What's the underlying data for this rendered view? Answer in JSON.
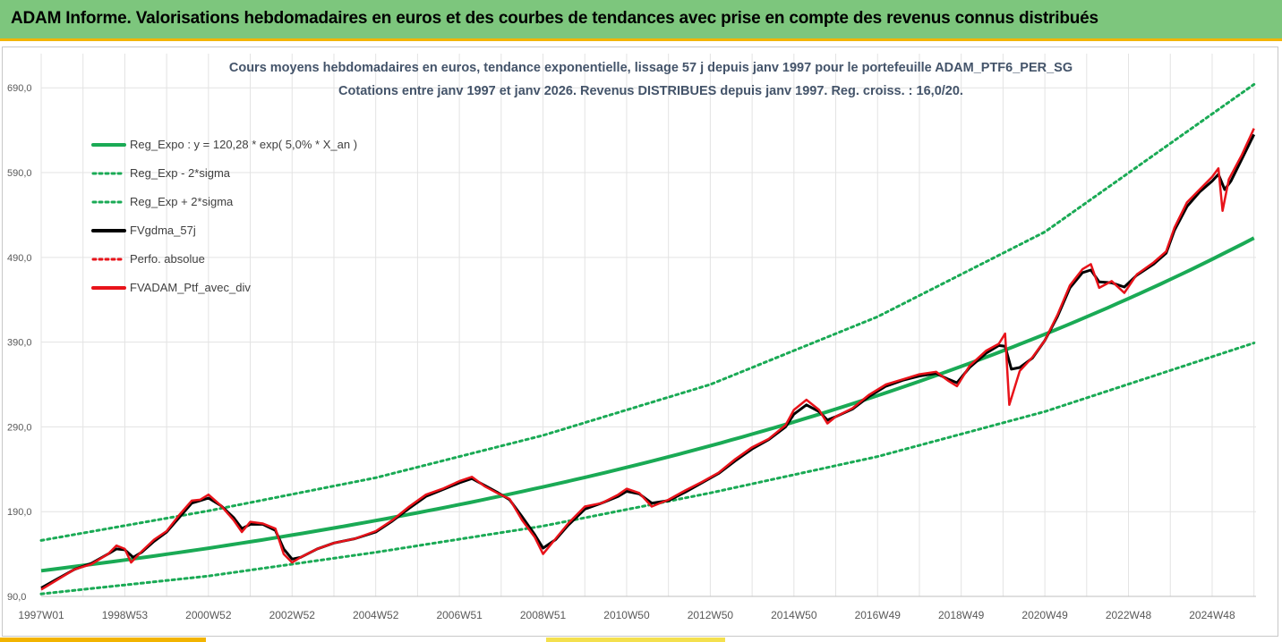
{
  "header": {
    "title": "ADAM Informe. Valorisations hebdomadaires en euros et des courbes de tendances avec prise en compte des revenus connus distribués"
  },
  "colors": {
    "header_bg": "#7dc67d",
    "accent_bar": "#f2b400",
    "trend": "#1aaa55",
    "moving_avg": "#000000",
    "portfolio": "#e8131a"
  },
  "chart_data": {
    "type": "line",
    "title": "Cours moyens hebdomadaires  en euros, tendance exponentielle, lissage 57 j depuis janv 1997 pour le portefeuille ADAM_PTF6_PER_SG",
    "subtitle": "Cotations entre janv 1997 et janv 2026. Revenus DISTRIBUES depuis janv 1997. Reg. croiss. : 16,0/20.",
    "xlabel": "",
    "ylabel": "",
    "ylim": [
      90,
      705
    ],
    "xlim": [
      1997.0,
      2026.05
    ],
    "y_ticks": [
      "90,0",
      "190,0",
      "290,0",
      "390,0",
      "490,0",
      "590,0",
      "690,0"
    ],
    "y_tick_values": [
      90,
      190,
      290,
      390,
      490,
      590,
      690
    ],
    "x_ticks": [
      "1997W01",
      "1998W53",
      "2000W52",
      "2002W52",
      "2004W52",
      "2006W51",
      "2008W51",
      "2010W50",
      "2012W50",
      "2014W50",
      "2016W49",
      "2018W49",
      "2020W49",
      "2022W48",
      "2024W48"
    ],
    "x_tick_values": [
      1997.0,
      1999.0,
      2001.0,
      2003.0,
      2005.0,
      2007.0,
      2009.0,
      2011.0,
      2013.0,
      2015.0,
      2017.0,
      2019.0,
      2021.0,
      2023.0,
      2025.0
    ],
    "grid": true,
    "legend_position": "top-left",
    "legend": [
      {
        "label": "Reg_Expo : y = 120,28 * exp( 5,0% *  X_an )",
        "style": "solid",
        "color": "#1aaa55"
      },
      {
        "label": "Reg_Exp - 2*sigma",
        "style": "dotted",
        "color": "#1aaa55"
      },
      {
        "label": "Reg_Exp + 2*sigma",
        "style": "dotted",
        "color": "#1aaa55"
      },
      {
        "label": "FVgdma_57j",
        "style": "solid",
        "color": "#000000"
      },
      {
        "label": "Perfo. absolue",
        "style": "dotted",
        "color": "#e8131a"
      },
      {
        "label": "FVADAM_Ptf_avec_div",
        "style": "solid",
        "color": "#e8131a"
      }
    ],
    "trend": {
      "a": 120.28,
      "rate": 0.05
    },
    "lower_band": [
      [
        1997.0,
        93
      ],
      [
        2001.0,
        114
      ],
      [
        2005.0,
        142
      ],
      [
        2009.0,
        173
      ],
      [
        2013.0,
        212
      ],
      [
        2017.0,
        255
      ],
      [
        2021.0,
        308
      ],
      [
        2026.0,
        389
      ]
    ],
    "upper_band": [
      [
        1997.0,
        156
      ],
      [
        2001.0,
        191
      ],
      [
        2005.0,
        230
      ],
      [
        2009.0,
        280
      ],
      [
        2013.0,
        340
      ],
      [
        2017.0,
        420
      ],
      [
        2021.0,
        520
      ],
      [
        2026.0,
        694
      ]
    ],
    "series": [
      {
        "name": "FVADAM_Ptf_avec_div",
        "points": [
          [
            1997.0,
            98
          ],
          [
            1997.4,
            110
          ],
          [
            1997.8,
            122
          ],
          [
            1998.2,
            128
          ],
          [
            1998.6,
            140
          ],
          [
            1998.8,
            150
          ],
          [
            1999.0,
            146
          ],
          [
            1999.15,
            130
          ],
          [
            1999.4,
            143
          ],
          [
            1999.7,
            157
          ],
          [
            2000.0,
            167
          ],
          [
            2000.3,
            186
          ],
          [
            2000.6,
            203
          ],
          [
            2000.8,
            204
          ],
          [
            2001.0,
            210
          ],
          [
            2001.3,
            197
          ],
          [
            2001.6,
            180
          ],
          [
            2001.8,
            166
          ],
          [
            2002.0,
            178
          ],
          [
            2002.3,
            176
          ],
          [
            2002.6,
            170
          ],
          [
            2002.8,
            140
          ],
          [
            2003.0,
            130
          ],
          [
            2003.2,
            136
          ],
          [
            2003.6,
            146
          ],
          [
            2004.0,
            153
          ],
          [
            2004.5,
            158
          ],
          [
            2005.0,
            167
          ],
          [
            2005.4,
            180
          ],
          [
            2005.8,
            196
          ],
          [
            2006.2,
            210
          ],
          [
            2006.6,
            217
          ],
          [
            2007.0,
            226
          ],
          [
            2007.3,
            231
          ],
          [
            2007.6,
            220
          ],
          [
            2007.9,
            212
          ],
          [
            2008.2,
            205
          ],
          [
            2008.5,
            180
          ],
          [
            2008.8,
            160
          ],
          [
            2009.0,
            140
          ],
          [
            2009.3,
            158
          ],
          [
            2009.6,
            176
          ],
          [
            2010.0,
            196
          ],
          [
            2010.4,
            200
          ],
          [
            2010.8,
            210
          ],
          [
            2011.0,
            217
          ],
          [
            2011.3,
            212
          ],
          [
            2011.6,
            196
          ],
          [
            2012.0,
            204
          ],
          [
            2012.4,
            215
          ],
          [
            2012.8,
            225
          ],
          [
            2013.2,
            236
          ],
          [
            2013.6,
            252
          ],
          [
            2014.0,
            266
          ],
          [
            2014.4,
            276
          ],
          [
            2014.8,
            292
          ],
          [
            2015.0,
            310
          ],
          [
            2015.3,
            322
          ],
          [
            2015.6,
            310
          ],
          [
            2015.8,
            294
          ],
          [
            2016.0,
            302
          ],
          [
            2016.4,
            312
          ],
          [
            2016.8,
            328
          ],
          [
            2017.2,
            340
          ],
          [
            2017.6,
            346
          ],
          [
            2018.0,
            352
          ],
          [
            2018.4,
            355
          ],
          [
            2018.7,
            344
          ],
          [
            2018.9,
            338
          ],
          [
            2019.2,
            362
          ],
          [
            2019.6,
            380
          ],
          [
            2019.9,
            388
          ],
          [
            2020.05,
            400
          ],
          [
            2020.15,
            316
          ],
          [
            2020.4,
            356
          ],
          [
            2020.7,
            372
          ],
          [
            2021.0,
            392
          ],
          [
            2021.3,
            422
          ],
          [
            2021.6,
            457
          ],
          [
            2021.9,
            476
          ],
          [
            2022.1,
            482
          ],
          [
            2022.3,
            454
          ],
          [
            2022.6,
            462
          ],
          [
            2022.9,
            448
          ],
          [
            2023.2,
            470
          ],
          [
            2023.6,
            484
          ],
          [
            2023.9,
            497
          ],
          [
            2024.1,
            525
          ],
          [
            2024.4,
            555
          ],
          [
            2024.7,
            570
          ],
          [
            2025.0,
            585
          ],
          [
            2025.15,
            595
          ],
          [
            2025.25,
            545
          ],
          [
            2025.4,
            582
          ],
          [
            2025.7,
            610
          ],
          [
            2026.0,
            642
          ]
        ]
      },
      {
        "name": "FVgdma_57j",
        "points": [
          [
            1997.0,
            100
          ],
          [
            1997.4,
            111
          ],
          [
            1997.8,
            122
          ],
          [
            1998.2,
            129
          ],
          [
            1998.6,
            140
          ],
          [
            1998.8,
            146
          ],
          [
            1999.0,
            145
          ],
          [
            1999.2,
            136
          ],
          [
            1999.4,
            142
          ],
          [
            1999.7,
            155
          ],
          [
            2000.0,
            166
          ],
          [
            2000.3,
            183
          ],
          [
            2000.6,
            200
          ],
          [
            2000.8,
            203
          ],
          [
            2001.0,
            206
          ],
          [
            2001.3,
            197
          ],
          [
            2001.6,
            183
          ],
          [
            2001.8,
            170
          ],
          [
            2002.0,
            175
          ],
          [
            2002.3,
            175
          ],
          [
            2002.6,
            168
          ],
          [
            2002.8,
            146
          ],
          [
            2003.0,
            134
          ],
          [
            2003.2,
            136
          ],
          [
            2003.6,
            146
          ],
          [
            2004.0,
            153
          ],
          [
            2004.5,
            158
          ],
          [
            2005.0,
            166
          ],
          [
            2005.4,
            179
          ],
          [
            2005.8,
            194
          ],
          [
            2006.2,
            208
          ],
          [
            2006.6,
            216
          ],
          [
            2007.0,
            224
          ],
          [
            2007.3,
            229
          ],
          [
            2007.6,
            221
          ],
          [
            2007.9,
            213
          ],
          [
            2008.2,
            204
          ],
          [
            2008.5,
            184
          ],
          [
            2008.8,
            163
          ],
          [
            2009.0,
            147
          ],
          [
            2009.3,
            157
          ],
          [
            2009.6,
            174
          ],
          [
            2010.0,
            193
          ],
          [
            2010.4,
            200
          ],
          [
            2010.8,
            208
          ],
          [
            2011.0,
            214
          ],
          [
            2011.3,
            211
          ],
          [
            2011.6,
            200
          ],
          [
            2012.0,
            203
          ],
          [
            2012.4,
            213
          ],
          [
            2012.8,
            224
          ],
          [
            2013.2,
            235
          ],
          [
            2013.6,
            250
          ],
          [
            2014.0,
            264
          ],
          [
            2014.4,
            275
          ],
          [
            2014.8,
            290
          ],
          [
            2015.0,
            305
          ],
          [
            2015.3,
            316
          ],
          [
            2015.6,
            308
          ],
          [
            2015.8,
            298
          ],
          [
            2016.0,
            302
          ],
          [
            2016.4,
            311
          ],
          [
            2016.8,
            326
          ],
          [
            2017.2,
            338
          ],
          [
            2017.6,
            345
          ],
          [
            2018.0,
            350
          ],
          [
            2018.4,
            353
          ],
          [
            2018.7,
            346
          ],
          [
            2018.9,
            342
          ],
          [
            2019.2,
            360
          ],
          [
            2019.6,
            377
          ],
          [
            2019.9,
            386
          ],
          [
            2020.05,
            385
          ],
          [
            2020.2,
            358
          ],
          [
            2020.4,
            360
          ],
          [
            2020.7,
            371
          ],
          [
            2021.0,
            392
          ],
          [
            2021.3,
            420
          ],
          [
            2021.6,
            454
          ],
          [
            2021.9,
            472
          ],
          [
            2022.1,
            475
          ],
          [
            2022.3,
            461
          ],
          [
            2022.6,
            460
          ],
          [
            2022.9,
            455
          ],
          [
            2023.2,
            469
          ],
          [
            2023.6,
            482
          ],
          [
            2023.9,
            495
          ],
          [
            2024.1,
            522
          ],
          [
            2024.4,
            550
          ],
          [
            2024.7,
            567
          ],
          [
            2025.0,
            580
          ],
          [
            2025.15,
            588
          ],
          [
            2025.3,
            570
          ],
          [
            2025.45,
            580
          ],
          [
            2025.7,
            605
          ],
          [
            2026.0,
            635
          ]
        ]
      }
    ]
  }
}
